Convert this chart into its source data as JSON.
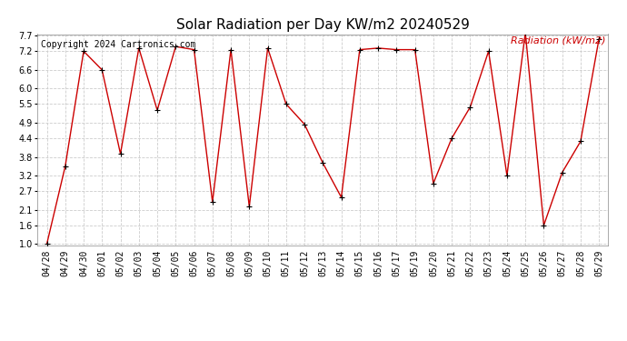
{
  "title": "Solar Radiation per Day KW/m2 20240529",
  "copyright": "Copyright 2024 Cartronics.com",
  "ylabel": "Radiation (kW/m2)",
  "dates": [
    "04/28",
    "04/29",
    "04/30",
    "05/01",
    "05/02",
    "05/03",
    "05/04",
    "05/05",
    "05/06",
    "05/07",
    "05/08",
    "05/09",
    "05/10",
    "05/11",
    "05/12",
    "05/13",
    "05/14",
    "05/15",
    "05/16",
    "05/17",
    "05/19",
    "05/20",
    "05/21",
    "05/22",
    "05/23",
    "05/24",
    "05/25",
    "05/26",
    "05/27",
    "05/28",
    "05/29"
  ],
  "values": [
    1.0,
    3.5,
    7.2,
    6.6,
    3.9,
    7.3,
    5.3,
    7.35,
    7.25,
    2.35,
    7.25,
    2.2,
    7.3,
    5.5,
    4.85,
    3.6,
    2.5,
    7.25,
    7.3,
    7.25,
    7.25,
    2.95,
    4.4,
    5.4,
    7.2,
    3.2,
    7.8,
    1.6,
    3.3,
    4.3,
    7.6
  ],
  "line_color": "#cc0000",
  "marker_color": "#000000",
  "background_color": "#ffffff",
  "grid_color": "#cccccc",
  "title_color": "#000000",
  "copyright_color": "#000000",
  "ylabel_color": "#cc0000",
  "ylim": [
    1.0,
    7.7
  ],
  "yticks": [
    1.0,
    1.6,
    2.1,
    2.7,
    3.2,
    3.8,
    4.4,
    4.9,
    5.5,
    6.0,
    6.6,
    7.2,
    7.7
  ],
  "title_fontsize": 11,
  "copyright_fontsize": 7,
  "ylabel_fontsize": 8,
  "tick_fontsize": 7
}
